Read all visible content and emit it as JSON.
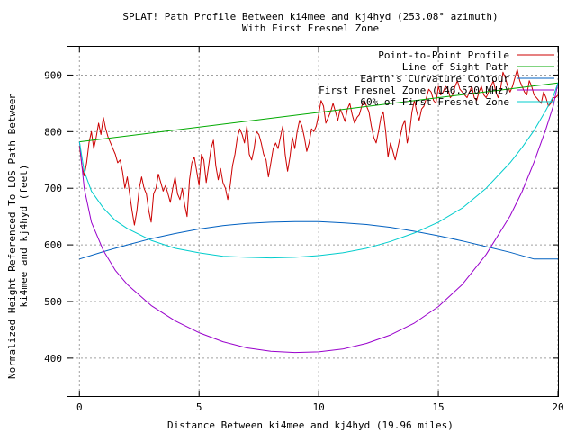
{
  "chart_data": {
    "type": "line",
    "title": "SPLAT! Path Profile Between ki4mee and kj4hyd (253.08° azimuth)",
    "subtitle": "With First Fresnel Zone",
    "xlabel": "Distance Between ki4mee and kj4hyd (19.96 miles)",
    "ylabel_line1": "Normalized Height Referenced To LOS Path Between",
    "ylabel_line2": "ki4mee and kj4hyd (feet)",
    "xlim": [
      -0.5,
      20
    ],
    "ylim": [
      333,
      950
    ],
    "xticks": [
      0,
      5,
      10,
      15,
      20
    ],
    "yticks": [
      400,
      500,
      600,
      700,
      800,
      900
    ],
    "grid": true,
    "legend_position": "top-right",
    "series": [
      {
        "name": "Point-to-Point Profile",
        "color": "#cc0000",
        "x": [
          0,
          0.1,
          0.2,
          0.3,
          0.4,
          0.5,
          0.6,
          0.7,
          0.8,
          0.9,
          1.0,
          1.1,
          1.2,
          1.3,
          1.4,
          1.5,
          1.6,
          1.7,
          1.8,
          1.9,
          2.0,
          2.1,
          2.2,
          2.3,
          2.4,
          2.5,
          2.6,
          2.7,
          2.8,
          2.9,
          3.0,
          3.1,
          3.2,
          3.3,
          3.4,
          3.5,
          3.6,
          3.7,
          3.8,
          3.9,
          4.0,
          4.1,
          4.2,
          4.3,
          4.4,
          4.5,
          4.6,
          4.7,
          4.8,
          4.9,
          5.0,
          5.1,
          5.2,
          5.3,
          5.4,
          5.5,
          5.6,
          5.7,
          5.8,
          5.9,
          6.0,
          6.1,
          6.2,
          6.3,
          6.4,
          6.5,
          6.6,
          6.7,
          6.8,
          6.9,
          7.0,
          7.1,
          7.2,
          7.3,
          7.4,
          7.5,
          7.6,
          7.7,
          7.8,
          7.9,
          8.0,
          8.1,
          8.2,
          8.3,
          8.4,
          8.5,
          8.6,
          8.7,
          8.8,
          8.9,
          9.0,
          9.1,
          9.2,
          9.3,
          9.4,
          9.5,
          9.6,
          9.7,
          9.8,
          9.9,
          10.0,
          10.1,
          10.2,
          10.3,
          10.4,
          10.5,
          10.6,
          10.7,
          10.8,
          10.9,
          11.0,
          11.1,
          11.2,
          11.3,
          11.4,
          11.5,
          11.6,
          11.7,
          11.8,
          11.9,
          12.0,
          12.1,
          12.2,
          12.3,
          12.4,
          12.5,
          12.6,
          12.7,
          12.8,
          12.9,
          13.0,
          13.1,
          13.2,
          13.3,
          13.4,
          13.5,
          13.6,
          13.7,
          13.8,
          13.9,
          14.0,
          14.1,
          14.2,
          14.3,
          14.4,
          14.5,
          14.6,
          14.7,
          14.8,
          14.9,
          15.0,
          15.1,
          15.2,
          15.3,
          15.4,
          15.5,
          15.6,
          15.7,
          15.8,
          15.9,
          16.0,
          16.1,
          16.2,
          16.3,
          16.4,
          16.5,
          16.6,
          16.7,
          16.8,
          16.9,
          17.0,
          17.1,
          17.2,
          17.3,
          17.4,
          17.5,
          17.6,
          17.7,
          17.8,
          17.9,
          18.0,
          18.1,
          18.2,
          18.3,
          18.4,
          18.5,
          18.6,
          18.7,
          18.8,
          18.9,
          19.0,
          19.1,
          19.2,
          19.3,
          19.4,
          19.5,
          19.6,
          19.7,
          19.8,
          19.9,
          20.0
        ],
        "y": [
          775,
          740,
          722,
          745,
          780,
          800,
          770,
          790,
          815,
          795,
          825,
          805,
          790,
          780,
          770,
          760,
          745,
          750,
          730,
          700,
          720,
          690,
          660,
          635,
          660,
          700,
          720,
          700,
          690,
          660,
          640,
          690,
          700,
          725,
          710,
          695,
          705,
          690,
          675,
          700,
          720,
          690,
          680,
          700,
          670,
          650,
          715,
          745,
          755,
          730,
          705,
          760,
          750,
          710,
          740,
          770,
          785,
          740,
          715,
          735,
          710,
          700,
          680,
          705,
          740,
          760,
          790,
          805,
          795,
          780,
          810,
          760,
          750,
          770,
          800,
          795,
          780,
          760,
          750,
          720,
          745,
          770,
          780,
          770,
          790,
          810,
          760,
          730,
          755,
          790,
          770,
          800,
          820,
          810,
          790,
          765,
          780,
          805,
          800,
          810,
          830,
          855,
          845,
          815,
          825,
          835,
          850,
          835,
          820,
          840,
          830,
          818,
          840,
          850,
          830,
          815,
          825,
          830,
          845,
          855,
          845,
          835,
          810,
          790,
          780,
          800,
          825,
          835,
          800,
          755,
          780,
          765,
          750,
          770,
          790,
          810,
          820,
          780,
          800,
          835,
          855,
          835,
          820,
          840,
          845,
          860,
          875,
          870,
          855,
          850,
          880,
          865,
          870,
          880,
          875,
          860,
          865,
          880,
          890,
          875,
          870,
          865,
          860,
          870,
          880,
          860,
          855,
          870,
          880,
          865,
          860,
          870,
          880,
          890,
          870,
          860,
          875,
          905,
          895,
          880,
          870,
          880,
          895,
          910,
          890,
          880,
          870,
          865,
          890,
          880,
          865,
          860,
          855,
          850,
          870,
          860,
          845,
          850,
          860,
          860,
          865
        ]
      },
      {
        "name": "Line of Sight Path",
        "color": "#00aa00",
        "x": [
          0,
          20
        ],
        "y": [
          782,
          886
        ]
      },
      {
        "name": "Earth's Curvature Contour",
        "color": "#0060c0",
        "x": [
          0,
          1,
          2,
          3,
          4,
          5,
          6,
          7,
          8,
          9,
          10,
          11,
          12,
          13,
          14,
          15,
          16,
          17,
          18,
          19,
          20
        ],
        "y": [
          575,
          588,
          600,
          611,
          620,
          628,
          634,
          638,
          640,
          641,
          641,
          639,
          636,
          631,
          624,
          616,
          607,
          597,
          587,
          575,
          575
        ]
      },
      {
        "name": "First Fresnel Zone (146.520 MHz)",
        "color": "#9900cc",
        "x": [
          0,
          0.2,
          0.5,
          1,
          1.5,
          2,
          3,
          4,
          5,
          6,
          7,
          8,
          9,
          10,
          11,
          12,
          13,
          14,
          15,
          16,
          17,
          18,
          18.5,
          19,
          19.5,
          19.8,
          20
        ],
        "y": [
          782,
          700,
          640,
          590,
          555,
          530,
          493,
          466,
          445,
          429,
          418,
          412,
          410,
          411,
          416,
          426,
          441,
          462,
          491,
          530,
          583,
          651,
          694,
          746,
          805,
          845,
          886
        ]
      },
      {
        "name": "60% of First Fresnel Zone",
        "color": "#00cccc",
        "x": [
          0,
          0.2,
          0.5,
          1,
          1.5,
          2,
          3,
          4,
          5,
          6,
          7,
          8,
          9,
          10,
          11,
          12,
          13,
          14,
          15,
          16,
          17,
          18,
          18.5,
          19,
          19.5,
          19.8,
          20
        ],
        "y": [
          782,
          730,
          695,
          665,
          643,
          629,
          608,
          594,
          586,
          580,
          578,
          577,
          578,
          581,
          586,
          594,
          606,
          621,
          640,
          665,
          700,
          745,
          772,
          802,
          838,
          862,
          886
        ]
      }
    ]
  }
}
